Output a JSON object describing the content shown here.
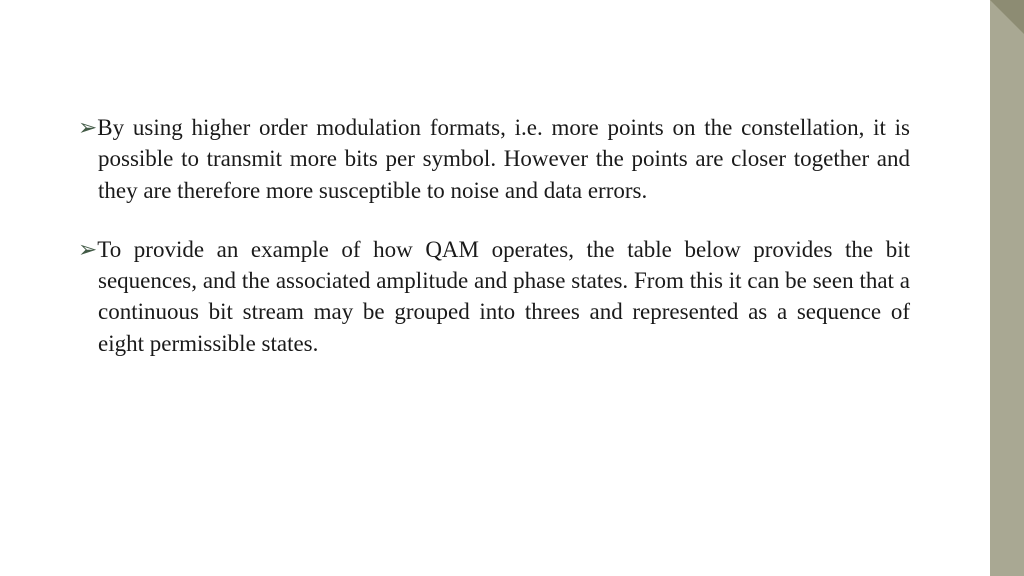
{
  "slide": {
    "background_color": "#ffffff",
    "sidebar_color": "#a9a893",
    "corner_triangle_color": "#8d8c73",
    "bullet_color": "#425a46",
    "text_color": "#1a1a1a",
    "font_family": "Times New Roman",
    "font_size_pt": 18,
    "line_height": 1.36,
    "bullets": [
      {
        "marker": "➢",
        "text": "By using higher order modulation formats, i.e. more points on the constellation, it is possible to transmit more bits per symbol. However the points are closer together  and they are  therefore more susceptible to noise and data errors."
      },
      {
        "marker": "➢",
        "text": "To provide  an example of how QAM operates, the table below provides the bit sequences, and the associated amplitude and phase states. From this it can be seen that a continuous bit stream may be grouped into threes and represented as a sequence of eight  permissible states."
      }
    ]
  }
}
